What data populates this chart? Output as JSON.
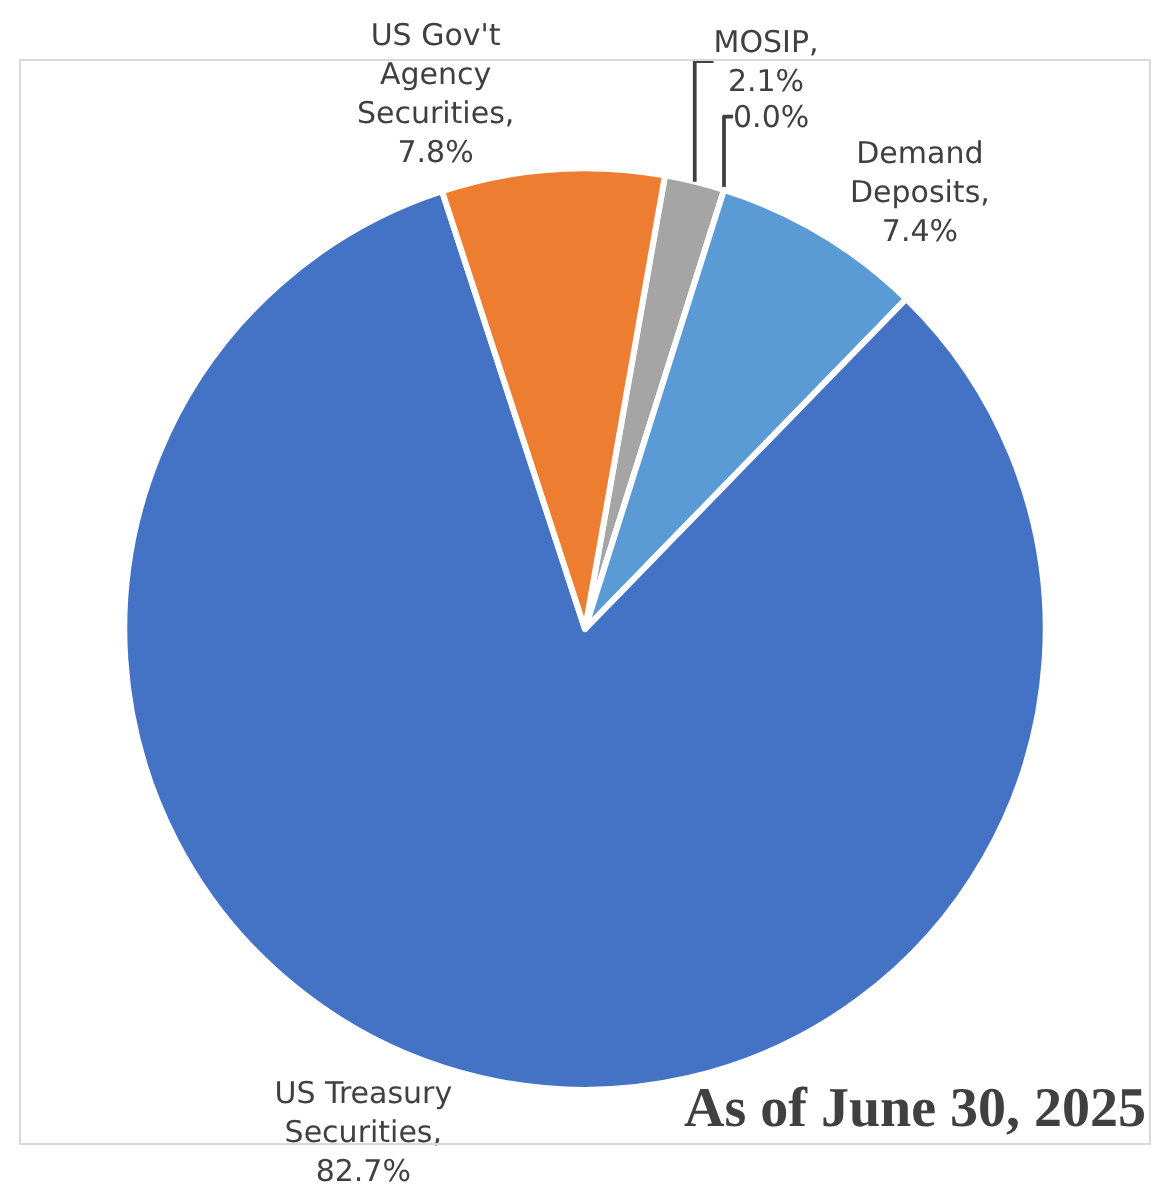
{
  "chart_data": {
    "type": "pie",
    "categories": [
      "MOSIP",
      null,
      "Demand Deposits",
      "US Treasury Securities",
      "US Gov't Agency Securities"
    ],
    "values": [
      2.1,
      0.0,
      7.4,
      82.7,
      7.8
    ],
    "colors": [
      "#a5a5a5",
      "#ffc000",
      "#5b9bd5",
      "#4472c4",
      "#ed7d31"
    ],
    "value_labels": [
      ",\n2.1%",
      "0.0%",
      ",\n7.4%",
      ",\n82.7%",
      ",\n7.8%"
    ],
    "legend": false,
    "annotations": [
      "As of June 30, 2025"
    ]
  }
}
